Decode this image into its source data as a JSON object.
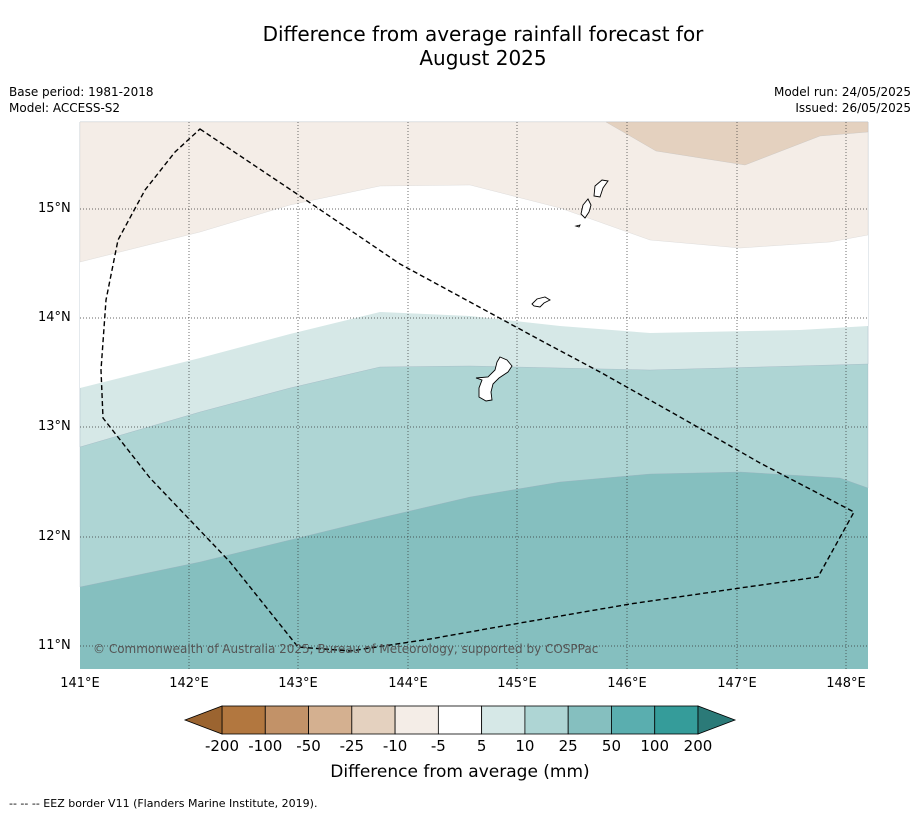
{
  "title_line1": "Difference from average rainfall forecast for",
  "title_line2": "August 2025",
  "meta_left": {
    "base_period": "Base period: 1981-2018",
    "model": "Model: ACCESS-S2"
  },
  "meta_right": {
    "model_run": "Model run: 24/05/2025",
    "issued": "Issued: 26/05/2025"
  },
  "map": {
    "lat_labels": [
      "15°N",
      "14°N",
      "13°N",
      "12°N",
      "11°N"
    ],
    "lon_labels": [
      "141°E",
      "142°E",
      "143°E",
      "144°E",
      "145°E",
      "146°E",
      "147°E",
      "148°E"
    ],
    "credit": "© Commonwealth of Australia 2025, Bureau of Meteorology, supported by COSPPac"
  },
  "legend": {
    "bins": [
      "-200",
      "-100",
      "-50",
      "-25",
      "-10",
      "-5",
      "5",
      "10",
      "25",
      "50",
      "100",
      "200"
    ],
    "colors": [
      "#9b6430",
      "#b2773f",
      "#c29268",
      "#d4b090",
      "#e4d1bf",
      "#f4ede7",
      "#ffffff",
      "#d6e8e7",
      "#aed5d4",
      "#85bfbf",
      "#5aaeaf",
      "#359c9a",
      "#2b7a78"
    ],
    "title": "Difference from average (mm)"
  },
  "footer": "--  --  -- EEZ border V11 (Flanders Marine Institute, 2019)."
}
